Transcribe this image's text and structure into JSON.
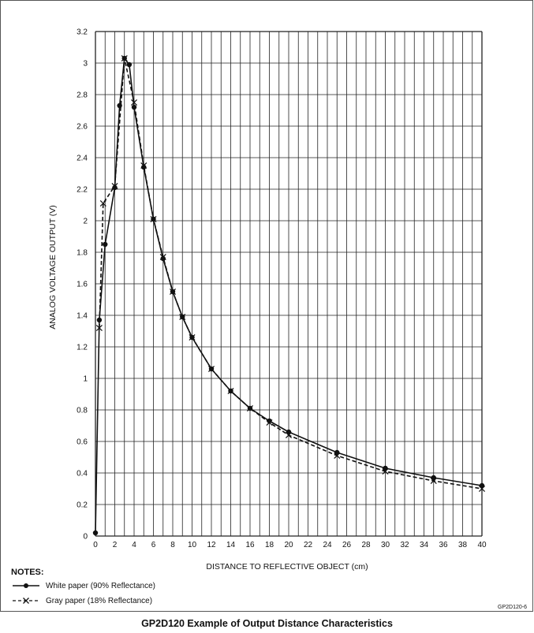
{
  "chart_data": {
    "type": "line",
    "title": "GP2D120 Example of Output Distance Characteristics",
    "xlabel": "DISTANCE TO REFLECTIVE OBJECT (cm)",
    "ylabel": "ANALOG VOLTAGE OUTPUT (V)",
    "xlim": [
      0,
      40
    ],
    "ylim": [
      0,
      3.2
    ],
    "x_ticks": [
      0,
      2,
      4,
      6,
      8,
      10,
      12,
      14,
      16,
      18,
      20,
      22,
      24,
      26,
      28,
      30,
      32,
      34,
      36,
      38,
      40
    ],
    "x_tick_labels": [
      "0",
      "2",
      "4",
      "6",
      "8",
      "10",
      "12",
      "14",
      "16",
      "18",
      "20",
      "22",
      "24",
      "26",
      "28",
      "30",
      "32",
      "34",
      "36",
      "38",
      "40"
    ],
    "y_ticks": [
      0,
      0.2,
      0.4,
      0.6,
      0.8,
      1,
      1.2,
      1.4,
      1.6,
      1.8,
      2,
      2.2,
      2.4,
      2.6,
      2.8,
      3,
      3.2
    ],
    "y_tick_labels": [
      "0",
      "0.2",
      "0.4",
      "0.6",
      "0.8",
      "1",
      "1.2",
      "1.4",
      "1.6",
      "1.8",
      "2",
      "2.2",
      "2.4",
      "2.6",
      "2.8",
      "3",
      "3.2"
    ],
    "grid": true,
    "series": [
      {
        "name": "White paper (90% Reflectance)",
        "line_style": "solid",
        "marker": "dot",
        "x": [
          0,
          0.4,
          1,
          2,
          2.5,
          3,
          3.5,
          4,
          5,
          6,
          7,
          8,
          9,
          10,
          12,
          14,
          16,
          18,
          20,
          25,
          30,
          35,
          40
        ],
        "y": [
          0.02,
          1.37,
          1.85,
          2.21,
          2.73,
          3.03,
          2.99,
          2.72,
          2.34,
          2.01,
          1.76,
          1.55,
          1.39,
          1.26,
          1.06,
          0.92,
          0.81,
          0.73,
          0.66,
          0.53,
          0.43,
          0.37,
          0.32
        ]
      },
      {
        "name": "Gray paper (18% Reflectance)",
        "line_style": "dashed",
        "marker": "x",
        "x": [
          0.4,
          0.8,
          2,
          3,
          4,
          5,
          6,
          7,
          8,
          9,
          10,
          12,
          14,
          16,
          18,
          20,
          25,
          30,
          35,
          40
        ],
        "y": [
          1.32,
          2.11,
          2.22,
          3.03,
          2.75,
          2.35,
          2.01,
          1.77,
          1.55,
          1.39,
          1.26,
          1.06,
          0.92,
          0.81,
          0.72,
          0.64,
          0.51,
          0.41,
          0.35,
          0.3
        ]
      }
    ]
  },
  "notes": {
    "title": "NOTES:",
    "white_label": "White paper (90% Reflectance)",
    "gray_label": "Gray paper (18% Reflectance)"
  },
  "figure_code": "GP2D120-6",
  "caption": "GP2D120 Example of Output Distance Characteristics"
}
